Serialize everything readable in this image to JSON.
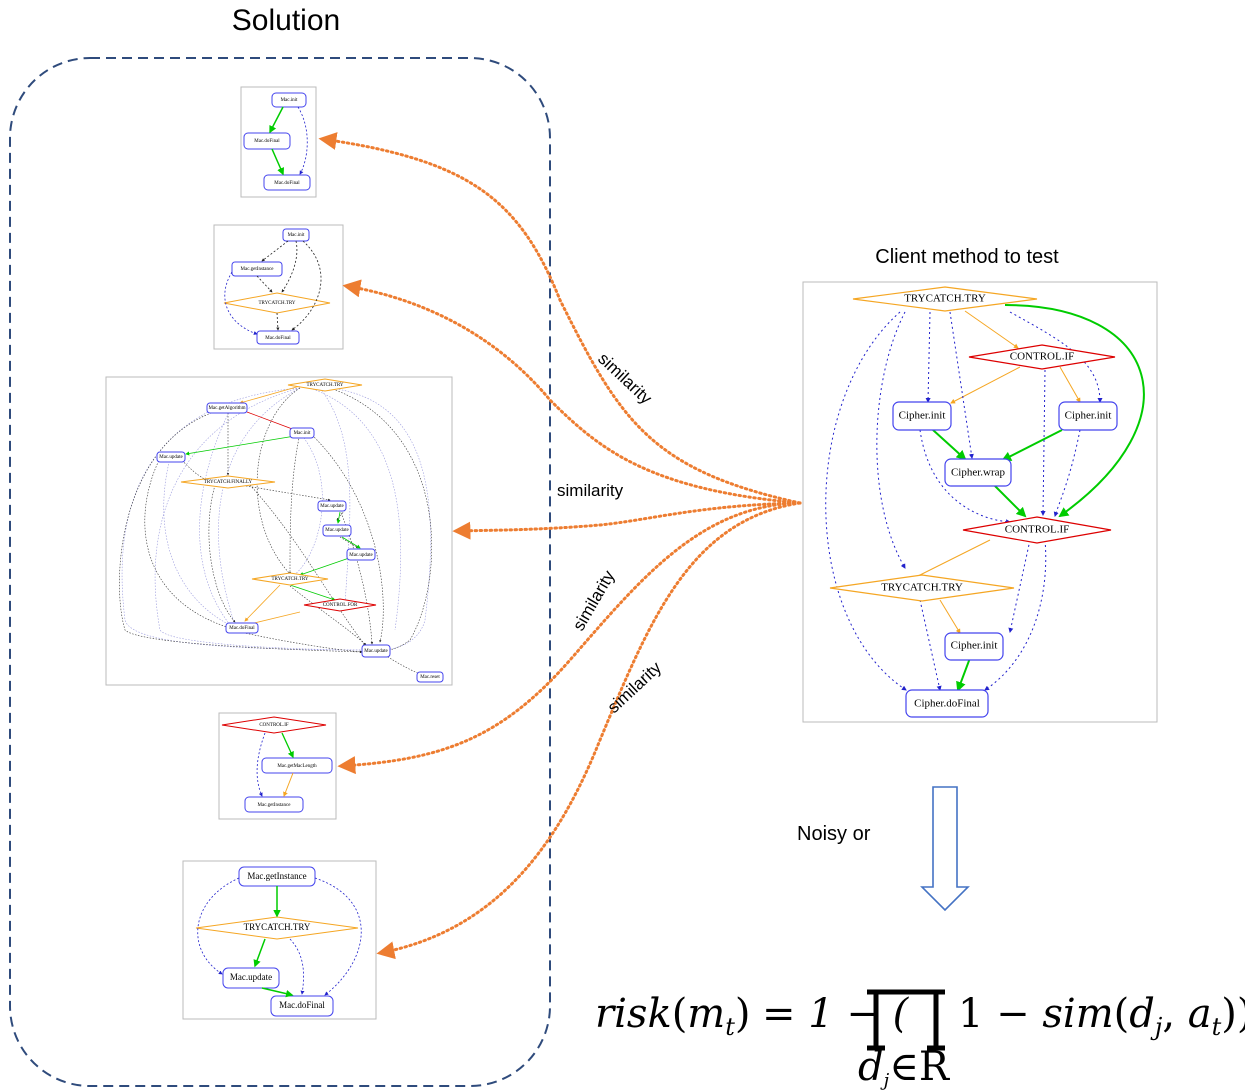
{
  "solution_title": "Solution",
  "client_title": "Client method to test",
  "similarity_label": "similarity",
  "noisy_or_label": "Noisy or",
  "formula": {
    "risk": "risk",
    "m": "m",
    "t": "t",
    "eq": "= 1 − (",
    "one_minus": "1 − ",
    "sim": "sim",
    "d": "d",
    "j": "j",
    "a": "a",
    "close": "))",
    "sub": "d",
    "sub_rest": "∈R"
  },
  "graph1": {
    "nodes": [
      "Mac.init",
      "Mac.doFinal",
      "Mac.doFinal"
    ]
  },
  "graph2": {
    "nodes": [
      "Mac.init",
      "Mac.getInstance",
      "TRYCATCH.TRY",
      "Mac.doFinal"
    ]
  },
  "graph3": {
    "nodes": [
      "TRYCATCH.TRY",
      "Mac.getAlgorithm",
      "Mac.init",
      "Mac.update",
      "TRYCATCH.FINALLY",
      "Mac.update",
      "Mac.update",
      "Mac.update",
      "TRYCATCH.TRY",
      "CONTROL.FOR",
      "Mac.doFinal",
      "Mac.update",
      "Mac.reset"
    ]
  },
  "graph4": {
    "nodes": [
      "CONTROL.IF",
      "Mac.getMacLength",
      "Mac.getInstance"
    ]
  },
  "graph5": {
    "nodes": [
      "Mac.getInstance",
      "TRYCATCH.TRY",
      "Mac.update",
      "Mac.doFinal"
    ]
  },
  "client": {
    "nodes": [
      "TRYCATCH.TRY",
      "CONTROL.IF",
      "Cipher.init",
      "Cipher.init",
      "Cipher.wrap",
      "CONTROL.IF",
      "TRYCATCH.TRY",
      "Cipher.init",
      "Cipher.doFinal"
    ]
  }
}
